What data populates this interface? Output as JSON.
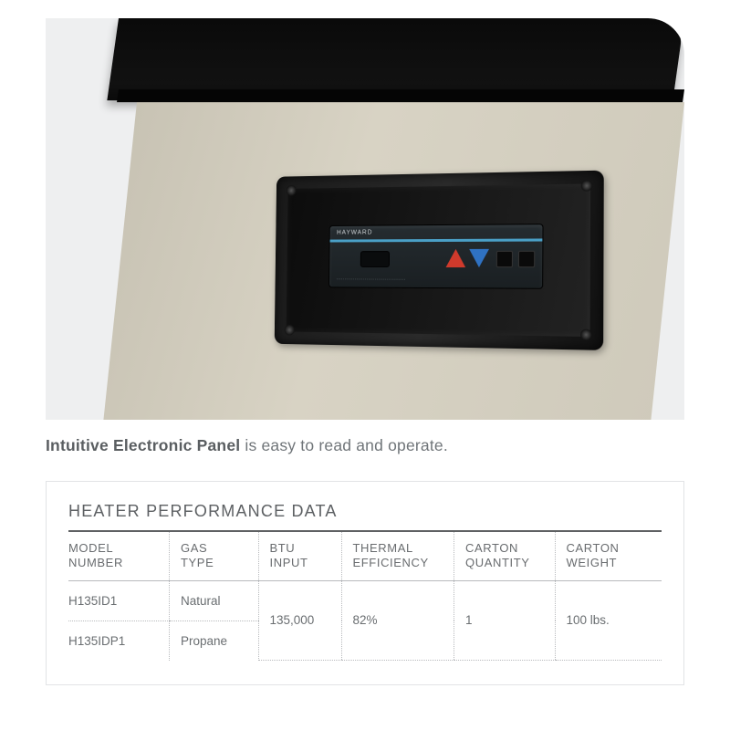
{
  "photo": {
    "brand_label": "HAYWARD",
    "colors": {
      "background": "#eeeff0",
      "unit_top": "#0a0a0a",
      "unit_body": "#d2cdbd",
      "panel_frame": "#1a1a1a",
      "display_bg": "#222a2e",
      "stripe": "#4aa0c7",
      "triangle_up": "#cf3a2c",
      "triangle_down": "#2f72c2"
    }
  },
  "caption": {
    "bold": "Intuitive Electronic Panel",
    "rest": " is easy to read and operate."
  },
  "table": {
    "title": "HEATER PERFORMANCE DATA",
    "columns": [
      "MODEL NUMBER",
      "GAS TYPE",
      "BTU INPUT",
      "THERMAL EFFICIENCY",
      "CARTON QUANTITY",
      "CARTON WEIGHT"
    ],
    "rows": [
      {
        "model": "H135ID1",
        "gas": "Natural"
      },
      {
        "model": "H135IDP1",
        "gas": "Propane"
      }
    ],
    "shared": {
      "btu_input": "135,000",
      "thermal_efficiency": "82%",
      "carton_quantity": "1",
      "carton_weight": "100 lbs."
    },
    "style": {
      "border_color": "#e2e3e6",
      "header_rule_color": "#5f6163",
      "divider_color": "#b8babd",
      "text_color": "#6a6e71",
      "title_fontsize_pt": 13,
      "header_fontsize_pt": 10,
      "cell_fontsize_pt": 10
    }
  }
}
